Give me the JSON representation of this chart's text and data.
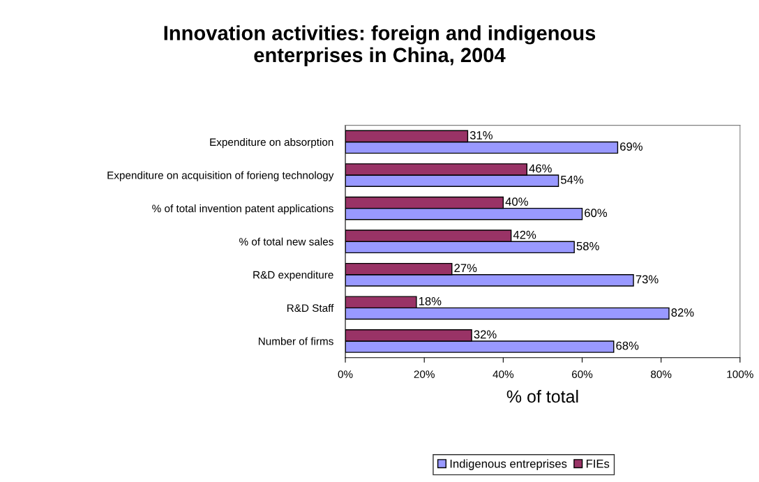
{
  "chart_data": {
    "type": "bar",
    "orientation": "horizontal",
    "title": "Innovation activities: foreign and indigenous\nenterprises in China, 2004",
    "xlabel": "% of total",
    "categories": [
      "Expenditure on absorption",
      "Expenditure on acquisition of forieng technology",
      "% of total invention patent applications",
      "% of total new sales",
      "R&D expenditure",
      "R&D Staff",
      "Number of firms"
    ],
    "series": [
      {
        "name": "Indigenous entreprises",
        "color": "#9999ff",
        "values": [
          69,
          54,
          60,
          58,
          73,
          82,
          68
        ],
        "value_labels": [
          "69%",
          "54%",
          "60%",
          "58%",
          "73%",
          "82%",
          "68%"
        ]
      },
      {
        "name": "FIEs",
        "color": "#993366",
        "values": [
          31,
          46,
          40,
          42,
          27,
          18,
          32
        ],
        "value_labels": [
          "31%",
          "46%",
          "40%",
          "42%",
          "27%",
          "18%",
          "32%"
        ]
      }
    ],
    "xlim": [
      0,
      100
    ],
    "xticks": [
      {
        "value": 0,
        "label": "0%"
      },
      {
        "value": 20,
        "label": "20%"
      },
      {
        "value": 40,
        "label": "40%"
      },
      {
        "value": 60,
        "label": "60%"
      },
      {
        "value": 80,
        "label": "80%"
      },
      {
        "value": 100,
        "label": "100%"
      }
    ],
    "grid": false,
    "legend": "bottom"
  }
}
